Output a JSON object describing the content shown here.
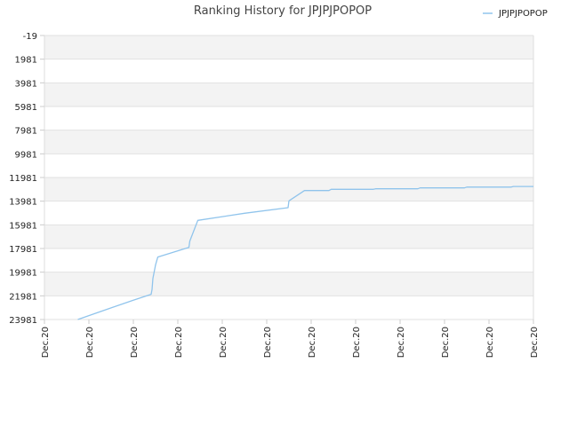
{
  "chart_data": {
    "type": "line",
    "title": "Ranking History for JPJPJPOPOP",
    "xlabel": "",
    "ylabel": "",
    "y_inverted": true,
    "ylim": [
      -19,
      23981
    ],
    "y_ticks": [
      -19,
      1981,
      3981,
      5981,
      7981,
      9981,
      11981,
      13981,
      15981,
      17981,
      19981,
      21981,
      23981
    ],
    "y_tick_labels": [
      "-19",
      "1981",
      "3981",
      "5981",
      "7981",
      "9981",
      "11981",
      "13981",
      "15981",
      "17981",
      "19981",
      "21981",
      "23981"
    ],
    "x_tick_labels": [
      "Dec.20",
      "Dec.20",
      "Dec.20",
      "Dec.20",
      "Dec.20",
      "Dec.20",
      "Dec.20",
      "Dec.20",
      "Dec.20",
      "Dec.20",
      "Dec.20",
      "Dec.20"
    ],
    "xlim": [
      0,
      11
    ],
    "grid": true,
    "banded_background": true,
    "legend": {
      "position": "top-right",
      "entries": [
        "JPJPJPOPOP"
      ]
    },
    "series": [
      {
        "name": "JPJPJPOPOP",
        "color": "#90c4ec",
        "points": [
          [
            0.75,
            23981
          ],
          [
            1.5,
            23000
          ],
          [
            2.0,
            22350
          ],
          [
            2.4,
            21850
          ],
          [
            2.42,
            21450
          ],
          [
            2.44,
            20500
          ],
          [
            2.5,
            19350
          ],
          [
            2.55,
            18700
          ],
          [
            3.25,
            17880
          ],
          [
            3.27,
            17350
          ],
          [
            3.45,
            15600
          ],
          [
            4.5,
            15000
          ],
          [
            5.48,
            14530
          ],
          [
            5.5,
            13950
          ],
          [
            5.85,
            13080
          ],
          [
            6.4,
            13080
          ],
          [
            6.45,
            12980
          ],
          [
            7.4,
            12980
          ],
          [
            7.45,
            12930
          ],
          [
            8.4,
            12930
          ],
          [
            8.45,
            12860
          ],
          [
            9.45,
            12860
          ],
          [
            9.5,
            12790
          ],
          [
            10.5,
            12790
          ],
          [
            10.55,
            12740
          ],
          [
            11.0,
            12740
          ]
        ]
      }
    ]
  }
}
